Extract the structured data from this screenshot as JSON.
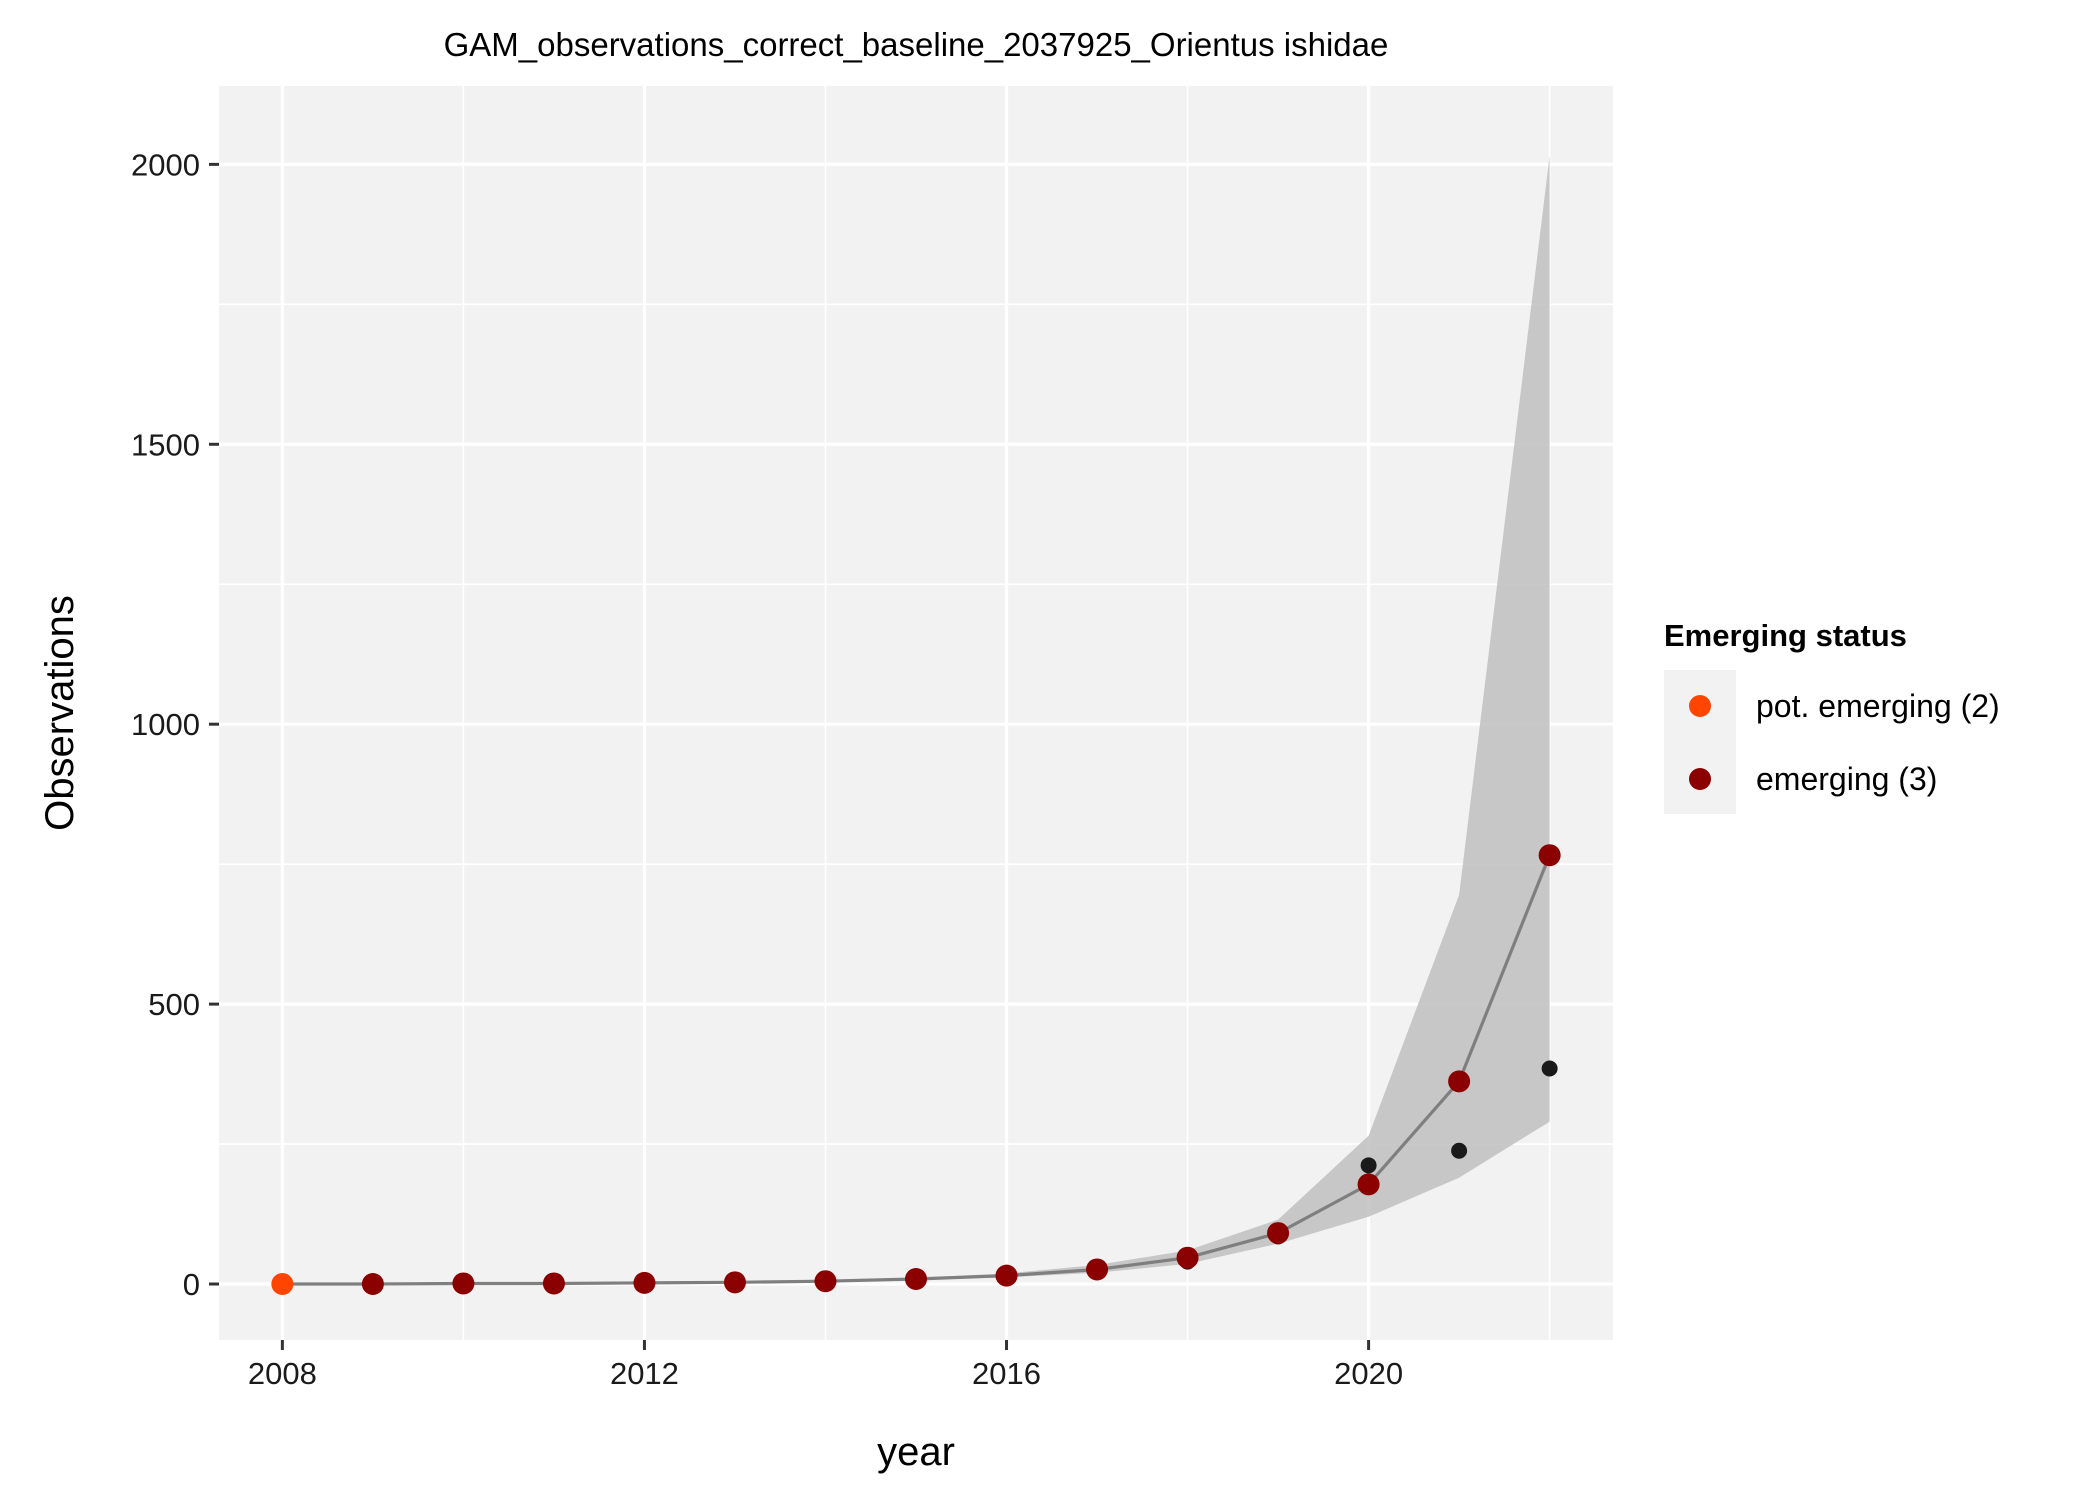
{
  "chart_data": {
    "type": "line",
    "title": "GAM_observations_correct_baseline_2037925_Orientus ishidae",
    "xlabel": "year",
    "ylabel": "Observations",
    "xlim": [
      2007.3,
      2022.7
    ],
    "ylim": [
      -100,
      2140
    ],
    "x_ticks": [
      2008,
      2012,
      2016,
      2020
    ],
    "y_ticks": [
      0,
      500,
      1000,
      1500,
      2000
    ],
    "x_tick_labels": [
      "2008",
      "2012",
      "2016",
      "2020"
    ],
    "y_tick_labels": [
      "0",
      "500",
      "1000",
      "1500",
      "2000"
    ],
    "x_minor_ticks": [
      2010,
      2014,
      2018,
      2022
    ],
    "y_minor_ticks": [
      250,
      750,
      1250,
      1750
    ],
    "grid": true,
    "legend": {
      "title": "Emerging status",
      "position": "right",
      "entries": [
        {
          "label": "pot. emerging (2)",
          "color": "#FF4500"
        },
        {
          "label": "emerging (3)",
          "color": "#8B0000"
        }
      ]
    },
    "years": [
      2008,
      2009,
      2010,
      2011,
      2012,
      2013,
      2014,
      2015,
      2016,
      2017,
      2018,
      2019,
      2020,
      2021,
      2022
    ],
    "fitted": [
      0,
      0,
      1,
      1,
      2,
      3,
      5,
      9,
      15,
      26,
      47,
      91,
      178,
      362,
      766
    ],
    "ci_lower": [
      0,
      0,
      0,
      1,
      1,
      2,
      4,
      7,
      12,
      20,
      36,
      72,
      120,
      190,
      290
    ],
    "ci_upper": [
      0,
      1,
      1,
      2,
      3,
      4,
      7,
      11,
      19,
      34,
      60,
      115,
      265,
      695,
      2015
    ],
    "observed": [
      0,
      0,
      0,
      1,
      1,
      3,
      4,
      9,
      20,
      23,
      40,
      85,
      212,
      238,
      385
    ],
    "status": [
      2,
      3,
      3,
      3,
      3,
      3,
      3,
      3,
      3,
      3,
      3,
      3,
      3,
      3,
      3
    ],
    "colors": {
      "panel": "#F2F2F2",
      "grid": "#FFFFFF",
      "ribbon": "#BFBFBF",
      "line": "#7F7F7F",
      "observed": "#1A1A1A",
      "pot_emerging": "#FF4500",
      "emerging": "#8B0000",
      "axis_text": "#1A1A1A",
      "tick": "#333333"
    }
  }
}
